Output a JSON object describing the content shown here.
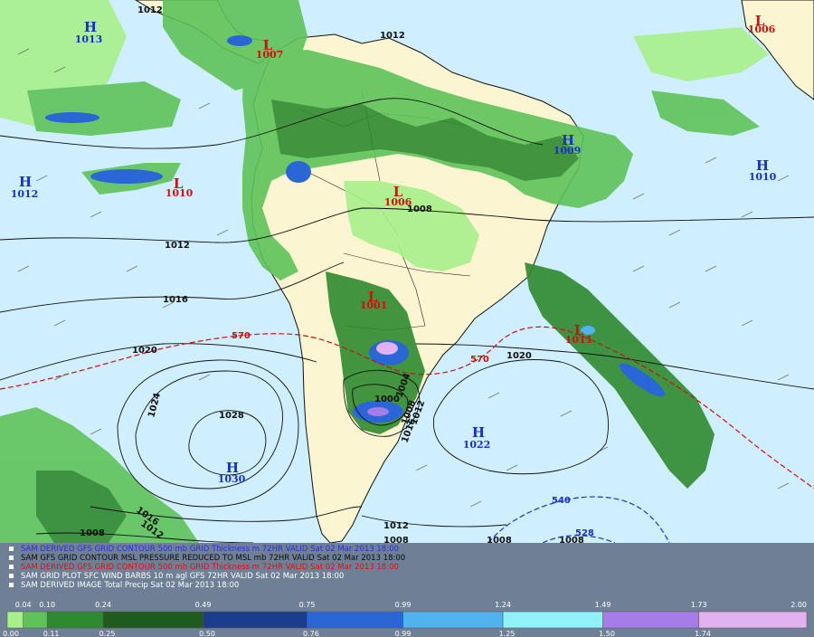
{
  "map": {
    "pressure_centers": [
      {
        "type": "H",
        "value": "1013",
        "color": "#1a2fd0"
      },
      {
        "type": "H",
        "value": "1012",
        "color": "#1a2fd0"
      },
      {
        "type": "H",
        "value": "1009",
        "color": "#1a2fd0"
      },
      {
        "type": "H",
        "value": "1010",
        "color": "#1a2fd0"
      },
      {
        "type": "H",
        "value": "1022",
        "color": "#1a2fd0"
      },
      {
        "type": "H",
        "value": "1030",
        "color": "#1a2fd0"
      },
      {
        "type": "L",
        "value": "1010",
        "color": "#d01010"
      },
      {
        "type": "L",
        "value": "1006",
        "color": "#d01010"
      },
      {
        "type": "L",
        "value": "1001",
        "color": "#d01010"
      },
      {
        "type": "L",
        "value": "1011",
        "color": "#d01010"
      },
      {
        "type": "L",
        "value": "1007",
        "color": "#d01010"
      },
      {
        "type": "L",
        "value": "1006",
        "color": "#d01010"
      }
    ],
    "isobar_labels": [
      "1012",
      "1012",
      "1008",
      "1012",
      "1016",
      "1020",
      "1024",
      "1028",
      "1020",
      "1000",
      "1004",
      "1008",
      "1012",
      "1016",
      "1016",
      "1012",
      "1008",
      "1012",
      "1008",
      "1008",
      "1008"
    ],
    "thickness_labels": [
      "570",
      "570",
      "540",
      "528"
    ],
    "colors": {
      "ocean": "#cfeefe",
      "land": "#fbf5d2",
      "isobar": "#111111",
      "thickness_570": "#d01010",
      "thickness_540": "#1a2fd0"
    }
  },
  "legend": {
    "lines": [
      {
        "text": "SAM DERIVED GFS GRID CONTOUR 500 mb GRID Thickness m 72HR VALID Sat 02 Mar 2013 18:00",
        "color": "#2a2fd8"
      },
      {
        "text": "SAM GFS GRID CONTOUR MSL PRESSURE REDUCED TO MSL mb 72HR VALID Sat 02 Mar 2013 18:00",
        "color": "#0a0a0a"
      },
      {
        "text": "SAM DERIVED GFS GRID CONTOUR 500 mb GRID Thickness m 72HR VALID Sat 02 Mar 2013 18:00",
        "color": "#d41414"
      },
      {
        "text": "SAM GRID PLOT SFC WIND BARBS 10 m agl GFS 72HR VALID Sat 02 Mar 2013 18:00",
        "color": "#ffffff"
      },
      {
        "text": "SAM DERIVED IMAGE Total Precip Sat 02 Mar 2013 18:00",
        "color": "#ffffff"
      }
    ]
  },
  "colorbar": {
    "top_ticks": [
      "0.04",
      "0.10",
      "0.24",
      "0.49",
      "0.75",
      "0.99",
      "1.24",
      "1.49",
      "1.73",
      "2.00"
    ],
    "bottom_ticks": [
      "0.00",
      "0.11",
      "0.25",
      "0.50",
      "0.76",
      "0.99",
      "1.25",
      "1.50",
      "1.74"
    ],
    "swatches": [
      "#a8f08c",
      "#5fc35a",
      "#2e8a2e",
      "#1f5a1f",
      "#1c3d8c",
      "#2b66d6",
      "#4fb4ee",
      "#8ff2f8",
      "#a67de8",
      "#e2b1ef"
    ]
  }
}
